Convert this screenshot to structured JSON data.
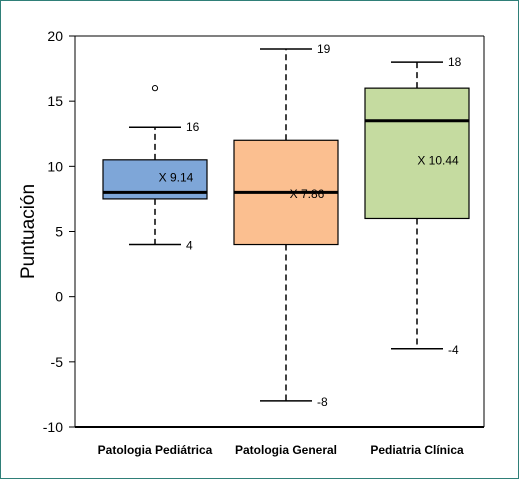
{
  "chart_data": {
    "type": "boxplot",
    "title": "",
    "xlabel": "",
    "ylabel": "Puntuación",
    "ylim": [
      -10,
      20
    ],
    "yticks": [
      -10,
      -5,
      0,
      5,
      10,
      15,
      20
    ],
    "ytick_labels": [
      "-10",
      "-5",
      "0",
      "5",
      "10",
      "15",
      "20"
    ],
    "grid": false,
    "legend": "none",
    "categories": [
      "Patologia  Pediátrica",
      "Patologia  General",
      "Pediatria  Clínica"
    ],
    "boxes": [
      {
        "category": "Patologia  Pediátrica",
        "whisker_low": 4,
        "q1": 7.5,
        "median": 8,
        "q3": 10.5,
        "whisker_high": 13,
        "outliers": [
          16
        ],
        "mean": 9.14,
        "mean_label": "X 9.14",
        "low_label": "4",
        "high_label": "16",
        "color": "#7ea6d8"
      },
      {
        "category": "Patologia  General",
        "whisker_low": -8,
        "q1": 4,
        "median": 8,
        "q3": 12,
        "whisker_high": 19,
        "outliers": [],
        "mean": 7.86,
        "mean_label": "X 7.86",
        "low_label": "-8",
        "high_label": "19",
        "color": "#fbbf90"
      },
      {
        "category": "Pediatria  Clínica",
        "whisker_low": -4,
        "q1": 6,
        "median": 13.5,
        "q3": 16,
        "whisker_high": 18,
        "outliers": [],
        "mean": 10.44,
        "mean_label": "X 10.44",
        "low_label": "-4",
        "high_label": "18",
        "color": "#c5dba0"
      }
    ]
  }
}
